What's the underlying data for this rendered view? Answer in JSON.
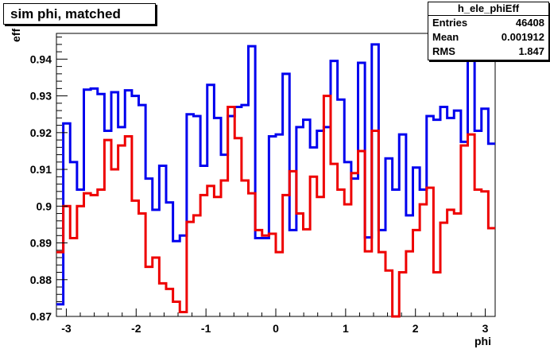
{
  "title": "sim phi, matched",
  "stats": {
    "name": "h_ele_phiEff",
    "rows": [
      {
        "label": "Entries",
        "value": "46408"
      },
      {
        "label": "Mean",
        "value": "0.001912"
      },
      {
        "label": "RMS",
        "value": "1.847"
      }
    ]
  },
  "chart_data": {
    "type": "line",
    "title": "sim phi, matched",
    "xlabel": "phi",
    "ylabel": "eff",
    "xlim": [
      -3.1416,
      3.1416
    ],
    "ylim": [
      0.87,
      0.947
    ],
    "x_ticks": [
      "-3",
      "-2",
      "-1",
      "0",
      "1",
      "2",
      "3"
    ],
    "y_ticks": [
      "0.87",
      "0.88",
      "0.89",
      "0.9",
      "0.91",
      "0.92",
      "0.93",
      "0.94"
    ],
    "grid": false,
    "bins": 64,
    "series": [
      {
        "color": "#0000ee",
        "values": [
          0.8733,
          0.9225,
          0.912,
          0.9045,
          0.9317,
          0.932,
          0.9305,
          0.9205,
          0.931,
          0.9215,
          0.9315,
          0.93,
          0.9275,
          0.9075,
          0.899,
          0.911,
          0.901,
          0.8905,
          0.892,
          0.925,
          0.9245,
          0.911,
          0.933,
          0.924,
          0.914,
          0.9245,
          0.927,
          0.9275,
          0.9435,
          0.8913,
          0.8913,
          0.919,
          0.9195,
          0.936,
          0.8935,
          0.9215,
          0.9235,
          0.916,
          0.9205,
          0.9215,
          0.9395,
          0.929,
          0.912,
          0.9075,
          0.939,
          0.8915,
          0.944,
          0.8935,
          0.913,
          0.9045,
          0.9195,
          0.8975,
          0.9105,
          0.9045,
          0.9245,
          0.9235,
          0.927,
          0.924,
          0.926,
          0.9175,
          0.9435,
          0.9205,
          0.9265,
          0.917
        ]
      },
      {
        "color": "#ee0000",
        "values": [
          0.8875,
          0.9,
          0.8913,
          0.9,
          0.9035,
          0.903,
          0.9045,
          0.918,
          0.91,
          0.9165,
          0.919,
          0.9015,
          0.898,
          0.8835,
          0.886,
          0.879,
          0.8775,
          0.874,
          0.8712,
          0.8957,
          0.8975,
          0.903,
          0.9055,
          0.9025,
          0.907,
          0.927,
          0.9185,
          0.907,
          0.9035,
          0.8935,
          0.892,
          0.8925,
          0.8875,
          0.903,
          0.9095,
          0.898,
          0.8937,
          0.908,
          0.9025,
          0.93,
          0.9115,
          0.9045,
          0.9005,
          0.909,
          0.915,
          0.8877,
          0.9205,
          0.8875,
          0.8825,
          0.8645,
          0.882,
          0.8877,
          0.8935,
          0.9005,
          0.905,
          0.882,
          0.8955,
          0.899,
          0.898,
          0.9165,
          0.9195,
          0.9045,
          0.904,
          0.894
        ]
      }
    ]
  }
}
